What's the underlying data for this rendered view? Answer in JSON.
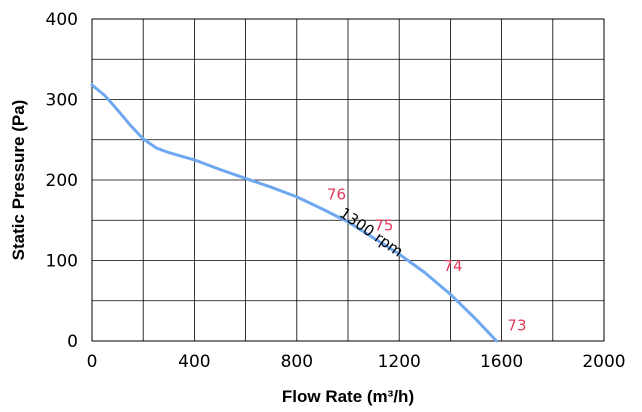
{
  "chart_data": {
    "type": "line",
    "title": "",
    "xlabel": "Flow Rate (m³/h)",
    "ylabel": "Static Pressure (Pa)",
    "xlim": [
      0,
      2000
    ],
    "ylim": [
      0,
      400
    ],
    "x_ticks": [
      0,
      400,
      800,
      1200,
      1600,
      2000
    ],
    "y_ticks": [
      0,
      100,
      200,
      300,
      400
    ],
    "x_minor_step": 200,
    "y_minor_step": 50,
    "grid": true,
    "colors": {
      "line": "#6FA8F0",
      "point_labels": "#E23A5A"
    },
    "series": [
      {
        "name": "",
        "x": [
          0,
          50,
          100,
          150,
          200,
          250,
          300,
          400,
          500,
          600,
          700,
          800,
          900,
          1000,
          1100,
          1200,
          1300,
          1400,
          1500,
          1580
        ],
        "y": [
          318,
          305,
          287,
          268,
          251,
          240,
          234,
          225,
          213,
          202,
          191,
          179,
          164,
          148,
          128,
          108,
          85,
          58,
          27,
          0
        ]
      }
    ],
    "annotations": {
      "curve_label": {
        "text": "1300 rpm",
        "x": 1080,
        "y": 130,
        "angle": 35
      },
      "point_labels": [
        {
          "text": "76",
          "x": 955,
          "y": 176
        },
        {
          "text": "75",
          "x": 1140,
          "y": 137
        },
        {
          "text": "74",
          "x": 1410,
          "y": 87
        },
        {
          "text": "73",
          "x": 1660,
          "y": 13
        }
      ]
    }
  }
}
